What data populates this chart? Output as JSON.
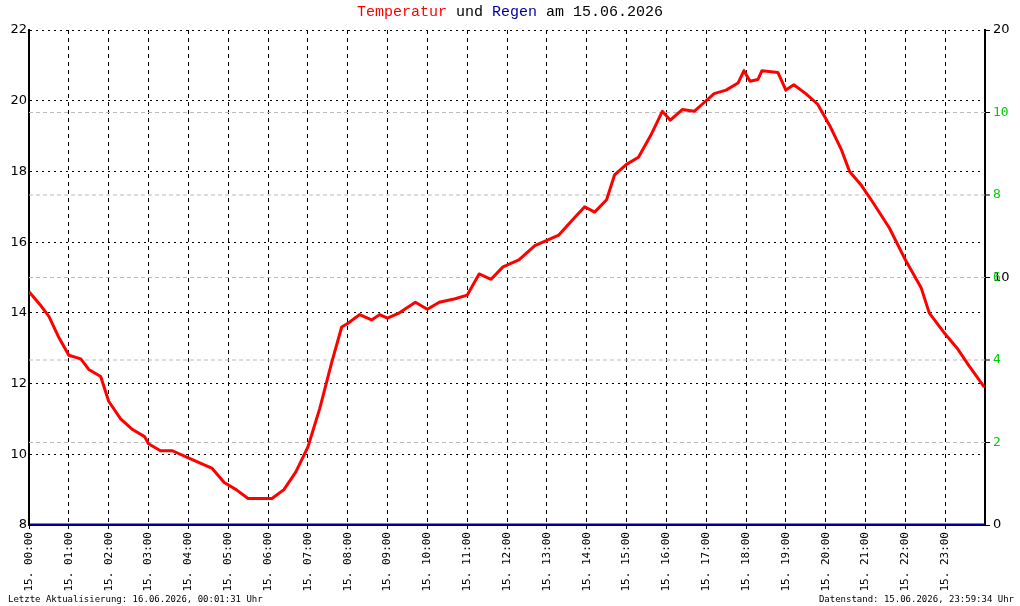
{
  "chart_data": {
    "type": "line",
    "title": "Temperatur und Regen am 15.06.2026",
    "xlim": [
      "2026-06-15T00:00",
      "2026-06-16T00:00"
    ],
    "xticks": [
      {
        "value": "2026-06-15T00:00",
        "label": "15. 00:00"
      },
      {
        "value": "2026-06-15T01:00",
        "label": "15. 01:00"
      },
      {
        "value": "2026-06-15T02:00",
        "label": "15. 02:00"
      },
      {
        "value": "2026-06-15T03:00",
        "label": "15. 03:00"
      },
      {
        "value": "2026-06-15T04:00",
        "label": "15. 04:00"
      },
      {
        "value": "2026-06-15T05:00",
        "label": "15. 05:00"
      },
      {
        "value": "2026-06-15T06:00",
        "label": "15. 06:00"
      },
      {
        "value": "2026-06-15T07:00",
        "label": "15. 07:00"
      },
      {
        "value": "2026-06-15T08:00",
        "label": "15. 08:00"
      },
      {
        "value": "2026-06-15T09:00",
        "label": "15. 09:00"
      },
      {
        "value": "2026-06-15T10:00",
        "label": "15. 10:00"
      },
      {
        "value": "2026-06-15T11:00",
        "label": "15. 11:00"
      },
      {
        "value": "2026-06-15T12:00",
        "label": "15. 12:00"
      },
      {
        "value": "2026-06-15T13:00",
        "label": "15. 13:00"
      },
      {
        "value": "2026-06-15T14:00",
        "label": "15. 14:00"
      },
      {
        "value": "2026-06-15T15:00",
        "label": "15. 15:00"
      },
      {
        "value": "2026-06-15T16:00",
        "label": "15. 16:00"
      },
      {
        "value": "2026-06-15T17:00",
        "label": "15. 17:00"
      },
      {
        "value": "2026-06-15T18:00",
        "label": "15. 18:00"
      },
      {
        "value": "2026-06-15T19:00",
        "label": "15. 19:00"
      },
      {
        "value": "2026-06-15T20:00",
        "label": "15. 20:00"
      },
      {
        "value": "2026-06-15T21:00",
        "label": "15. 21:00"
      },
      {
        "value": "2026-06-15T22:00",
        "label": "15. 22:00"
      },
      {
        "value": "2026-06-15T23:00",
        "label": "15. 23:00"
      }
    ],
    "ylim": [
      8,
      22
    ],
    "yticks": [
      8,
      10,
      12,
      14,
      16,
      18,
      20,
      22
    ],
    "y2lim": [
      0,
      20
    ],
    "y2ticks": [
      0,
      10,
      20
    ],
    "y3lim": [
      0,
      12
    ],
    "y3ticks": [
      2,
      4,
      6,
      8,
      10
    ],
    "grid": true,
    "series": [
      {
        "color": "#ff0000",
        "x": [
          "2026-06-15T00:00",
          "2026-06-15T00:18",
          "2026-06-15T00:30",
          "2026-06-15T00:45",
          "2026-06-15T01:00",
          "2026-06-15T01:18",
          "2026-06-15T01:30",
          "2026-06-15T01:48",
          "2026-06-15T02:00",
          "2026-06-15T02:18",
          "2026-06-15T02:36",
          "2026-06-15T02:54",
          "2026-06-15T03:00",
          "2026-06-15T03:18",
          "2026-06-15T03:36",
          "2026-06-15T04:00",
          "2026-06-15T04:18",
          "2026-06-15T04:36",
          "2026-06-15T04:54",
          "2026-06-15T05:12",
          "2026-06-15T05:30",
          "2026-06-15T05:48",
          "2026-06-15T06:06",
          "2026-06-15T06:24",
          "2026-06-15T06:42",
          "2026-06-15T07:00",
          "2026-06-15T07:18",
          "2026-06-15T07:36",
          "2026-06-15T07:51",
          "2026-06-15T08:00",
          "2026-06-15T08:18",
          "2026-06-15T08:36",
          "2026-06-15T08:48",
          "2026-06-15T09:00",
          "2026-06-15T09:18",
          "2026-06-15T09:42",
          "2026-06-15T10:00",
          "2026-06-15T10:18",
          "2026-06-15T10:42",
          "2026-06-15T11:00",
          "2026-06-15T11:18",
          "2026-06-15T11:36",
          "2026-06-15T11:54",
          "2026-06-15T12:18",
          "2026-06-15T12:42",
          "2026-06-15T13:00",
          "2026-06-15T13:18",
          "2026-06-15T13:42",
          "2026-06-15T13:57",
          "2026-06-15T14:12",
          "2026-06-15T14:30",
          "2026-06-15T14:42",
          "2026-06-15T15:00",
          "2026-06-15T15:18",
          "2026-06-15T15:36",
          "2026-06-15T15:54",
          "2026-06-15T16:06",
          "2026-06-15T16:24",
          "2026-06-15T16:42",
          "2026-06-15T16:54",
          "2026-06-15T17:12",
          "2026-06-15T17:30",
          "2026-06-15T17:48",
          "2026-06-15T17:57",
          "2026-06-15T18:06",
          "2026-06-15T18:18",
          "2026-06-15T18:24",
          "2026-06-15T18:48",
          "2026-06-15T19:00",
          "2026-06-15T19:12",
          "2026-06-15T19:30",
          "2026-06-15T19:48",
          "2026-06-15T20:06",
          "2026-06-15T20:24",
          "2026-06-15T20:36",
          "2026-06-15T20:54",
          "2026-06-15T21:12",
          "2026-06-15T21:36",
          "2026-06-15T22:00",
          "2026-06-15T22:24",
          "2026-06-15T22:36",
          "2026-06-15T23:00",
          "2026-06-15T23:18",
          "2026-06-15T23:36",
          "2026-06-15T23:59"
        ],
        "values": [
          14.6,
          14.2,
          13.9,
          13.3,
          12.8,
          12.7,
          12.4,
          12.2,
          11.5,
          11.0,
          10.7,
          10.5,
          10.3,
          10.1,
          10.1,
          9.9,
          9.75,
          9.6,
          9.2,
          9.0,
          8.75,
          8.75,
          8.75,
          9.0,
          9.5,
          10.2,
          11.3,
          12.6,
          13.6,
          13.7,
          13.95,
          13.8,
          13.95,
          13.85,
          14.0,
          14.3,
          14.1,
          14.3,
          14.4,
          14.5,
          15.1,
          14.95,
          15.3,
          15.5,
          15.9,
          16.05,
          16.2,
          16.7,
          17.0,
          16.85,
          17.2,
          17.9,
          18.2,
          18.4,
          19.0,
          19.7,
          19.45,
          19.75,
          19.7,
          19.9,
          20.2,
          20.3,
          20.5,
          20.85,
          20.55,
          20.6,
          20.85,
          20.8,
          20.3,
          20.45,
          20.2,
          19.9,
          19.3,
          18.6,
          18.0,
          17.6,
          17.1,
          16.4,
          15.5,
          14.7,
          14.0,
          13.4,
          13.0,
          12.5,
          11.9
        ]
      },
      {
        "color": "#0000a0",
        "axis": "y2",
        "x": [
          "2026-06-15T00:00",
          "2026-06-16T00:00"
        ],
        "values": [
          0,
          0
        ]
      }
    ],
    "annotations": [
      "Letzte Aktualisierung: 16.06.2026, 00:01:31 Uhr",
      "Datenstand: 15.06.2026, 23:59:34 Uhr"
    ]
  }
}
